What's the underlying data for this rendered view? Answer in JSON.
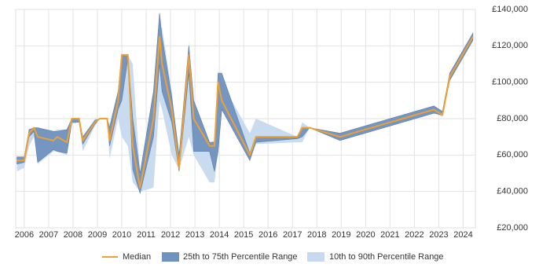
{
  "chart_data": {
    "type": "line",
    "x": [
      2005.7,
      2006.0,
      2006.2,
      2006.4,
      2006.55,
      2007.2,
      2007.35,
      2007.75,
      2007.95,
      2008.25,
      2008.4,
      2008.9,
      2009.1,
      2009.4,
      2009.5,
      2009.85,
      2010.0,
      2010.25,
      2010.45,
      2010.75,
      2011.3,
      2011.55,
      2011.65,
      2012.05,
      2012.35,
      2012.75,
      2012.95,
      2013.6,
      2013.8,
      2013.95,
      2014.1,
      2015.25,
      2015.5,
      2017.2,
      2017.4,
      2017.7,
      2018.95,
      2022.8,
      2023.15,
      2023.45,
      2024.4
    ],
    "series": [
      {
        "name": "Median",
        "color": "#f0a030",
        "values": [
          57000,
          57000,
          72000,
          75000,
          70000,
          68000,
          70000,
          67000,
          80000,
          80000,
          68000,
          78000,
          80000,
          80000,
          68000,
          90000,
          115000,
          115000,
          65000,
          42000,
          80000,
          125000,
          110000,
          85000,
          53000,
          115000,
          80000,
          65000,
          65000,
          100000,
          90000,
          60000,
          70000,
          70000,
          75000,
          75000,
          70000,
          85000,
          82000,
          103000,
          125000
        ]
      },
      {
        "name": "25th to 75th Percentile Range",
        "color": "#7092be",
        "low": [
          55000,
          56000,
          70000,
          73000,
          56000,
          63000,
          62000,
          61000,
          78000,
          78000,
          66000,
          77000,
          80000,
          80000,
          65000,
          85000,
          90000,
          113000,
          52000,
          39000,
          70000,
          110000,
          95000,
          78000,
          51000,
          105000,
          62000,
          62000,
          51000,
          62000,
          85000,
          57000,
          67000,
          69000,
          70000,
          75000,
          68000,
          83000,
          82000,
          101000,
          123000
        ],
        "high": [
          59000,
          59000,
          74000,
          75000,
          75000,
          73000,
          73000,
          74000,
          80000,
          80000,
          70000,
          79000,
          80000,
          80000,
          75000,
          95000,
          115000,
          115000,
          80000,
          50000,
          95000,
          138000,
          125000,
          92000,
          60000,
          120000,
          90000,
          67000,
          67000,
          105000,
          105000,
          61000,
          70000,
          70000,
          75000,
          75000,
          72000,
          87000,
          84000,
          105000,
          127000
        ]
      },
      {
        "name": "10th to 90th Percentile Range",
        "color": "#c6d9ee",
        "low": [
          51000,
          53000,
          65000,
          70000,
          55000,
          62000,
          62000,
          60000,
          77000,
          78000,
          62000,
          76000,
          80000,
          80000,
          58000,
          80000,
          70000,
          65000,
          45000,
          40000,
          42000,
          90000,
          85000,
          60000,
          52000,
          70000,
          60000,
          45000,
          45000,
          62000,
          85000,
          58000,
          66000,
          67000,
          67000,
          75000,
          68000,
          83000,
          81000,
          101000,
          123000
        ],
        "high": [
          59000,
          59000,
          74000,
          75000,
          75000,
          73000,
          74000,
          74000,
          80000,
          80000,
          70000,
          80000,
          80000,
          80000,
          77000,
          95000,
          115000,
          115000,
          110000,
          50000,
          95000,
          130000,
          130000,
          95000,
          55000,
          122000,
          90000,
          67000,
          68000,
          105000,
          100000,
          72000,
          80000,
          70000,
          78000,
          75000,
          72000,
          87000,
          84000,
          105000,
          127000
        ]
      }
    ],
    "xlim": [
      2005.65,
      2024.5
    ],
    "xticks": [
      2006,
      2007,
      2008,
      2009,
      2010,
      2011,
      2012,
      2013,
      2014,
      2015,
      2016,
      2017,
      2018,
      2019,
      2020,
      2021,
      2022,
      2023,
      2024
    ],
    "ylim": [
      20000,
      140000
    ],
    "yticks": [
      {
        "value": 20000,
        "label": "£20,000"
      },
      {
        "value": 40000,
        "label": "£40,000"
      },
      {
        "value": 60000,
        "label": "£60,000"
      },
      {
        "value": 80000,
        "label": "£80,000"
      },
      {
        "value": 100000,
        "label": "£100,000"
      },
      {
        "value": 120000,
        "label": "£120,000"
      },
      {
        "value": 140000,
        "label": "£140,000"
      }
    ],
    "grid": true,
    "legend": "bottom"
  }
}
